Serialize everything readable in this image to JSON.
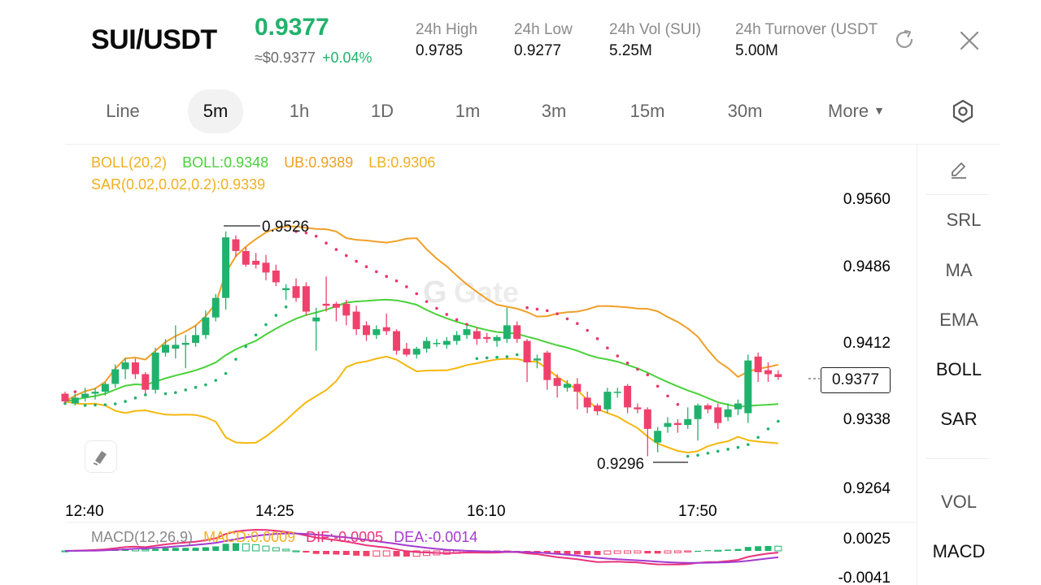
{
  "header": {
    "pair": "SUI/USDT",
    "last_price": "0.9377",
    "usd_price": "≈$0.9377",
    "change": "+0.04%",
    "stats": [
      {
        "label": "24h  High",
        "value": "0.9785"
      },
      {
        "label": "24h  Low",
        "value": "0.9277"
      },
      {
        "label": "24h  Vol (SUI)",
        "value": "5.25M"
      },
      {
        "label": "24h  Turnover (USDT",
        "value": "5.00M"
      }
    ]
  },
  "timeframes": [
    "Line",
    "5m",
    "1h",
    "1D",
    "1m",
    "3m",
    "15m",
    "30m"
  ],
  "active_timeframe": "5m",
  "more_label": "More",
  "indicators": {
    "boll_name": "BOLL(20,2)",
    "boll": "BOLL:0.9348",
    "ub": "UB:0.9389",
    "lb": "LB:0.9306",
    "sar": "SAR(0.02,0.02,0.2):0.9339"
  },
  "price_axis": [
    "0.9560",
    "0.9486",
    "0.9412",
    "0.9338",
    "0.9264"
  ],
  "time_axis": [
    "12:40",
    "14:25",
    "16:10",
    "17:50"
  ],
  "annotations": {
    "high": "0.9526",
    "low": "0.9296"
  },
  "current_price_tag": "0.9377",
  "macd": {
    "name": "MACD(12,26,9)",
    "macd": "MACD:0.0009",
    "dif": "DIF:-0.0005",
    "dea": "DEA:-0.0014",
    "axis": [
      "0.0025",
      "-0.0041"
    ]
  },
  "sidebar": {
    "items": [
      "SRL",
      "MA",
      "EMA",
      "BOLL",
      "SAR",
      "VOL",
      "MACD"
    ],
    "active": [
      "BOLL",
      "SAR",
      "MACD"
    ]
  },
  "colors": {
    "up": "#20b26c",
    "down": "#f0416c",
    "boll": "#49d13a",
    "bands": "#f0a028",
    "sar": "#e8366a"
  },
  "chart_data": {
    "type": "candlestick",
    "ylim": [
      0.9264,
      0.956
    ],
    "candles": [
      {
        "o": 0.936,
        "h": 0.9362,
        "l": 0.935,
        "c": 0.9352
      },
      {
        "o": 0.935,
        "h": 0.936,
        "l": 0.9348,
        "c": 0.9356
      },
      {
        "o": 0.9356,
        "h": 0.9366,
        "l": 0.9352,
        "c": 0.936
      },
      {
        "o": 0.936,
        "h": 0.9366,
        "l": 0.9354,
        "c": 0.9362
      },
      {
        "o": 0.9362,
        "h": 0.9372,
        "l": 0.9358,
        "c": 0.937
      },
      {
        "o": 0.937,
        "h": 0.939,
        "l": 0.9366,
        "c": 0.9385
      },
      {
        "o": 0.9385,
        "h": 0.9396,
        "l": 0.9375,
        "c": 0.9392
      },
      {
        "o": 0.9392,
        "h": 0.9396,
        "l": 0.9375,
        "c": 0.938
      },
      {
        "o": 0.938,
        "h": 0.9382,
        "l": 0.936,
        "c": 0.9364
      },
      {
        "o": 0.9364,
        "h": 0.9407,
        "l": 0.936,
        "c": 0.9402
      },
      {
        "o": 0.9402,
        "h": 0.9416,
        "l": 0.9398,
        "c": 0.941
      },
      {
        "o": 0.9406,
        "h": 0.943,
        "l": 0.9396,
        "c": 0.941
      },
      {
        "o": 0.941,
        "h": 0.942,
        "l": 0.9386,
        "c": 0.9412
      },
      {
        "o": 0.9412,
        "h": 0.943,
        "l": 0.9408,
        "c": 0.942
      },
      {
        "o": 0.942,
        "h": 0.9445,
        "l": 0.9416,
        "c": 0.9438
      },
      {
        "o": 0.9438,
        "h": 0.9462,
        "l": 0.9434,
        "c": 0.9458
      },
      {
        "o": 0.9458,
        "h": 0.9526,
        "l": 0.9446,
        "c": 0.952
      },
      {
        "o": 0.9518,
        "h": 0.9522,
        "l": 0.95,
        "c": 0.9506
      },
      {
        "o": 0.9506,
        "h": 0.951,
        "l": 0.949,
        "c": 0.9492
      },
      {
        "o": 0.9496,
        "h": 0.9504,
        "l": 0.9488,
        "c": 0.9492
      },
      {
        "o": 0.9494,
        "h": 0.9502,
        "l": 0.9476,
        "c": 0.9484
      },
      {
        "o": 0.9486,
        "h": 0.9492,
        "l": 0.947,
        "c": 0.9474
      },
      {
        "o": 0.9466,
        "h": 0.9472,
        "l": 0.9456,
        "c": 0.9468
      },
      {
        "o": 0.947,
        "h": 0.9478,
        "l": 0.9454,
        "c": 0.9458
      },
      {
        "o": 0.947,
        "h": 0.9474,
        "l": 0.944,
        "c": 0.9444
      },
      {
        "o": 0.9434,
        "h": 0.9448,
        "l": 0.9404,
        "c": 0.9438
      },
      {
        "o": 0.9452,
        "h": 0.948,
        "l": 0.9444,
        "c": 0.945
      },
      {
        "o": 0.9452,
        "h": 0.9454,
        "l": 0.9434,
        "c": 0.9448
      },
      {
        "o": 0.9452,
        "h": 0.9456,
        "l": 0.943,
        "c": 0.944
      },
      {
        "o": 0.9444,
        "h": 0.945,
        "l": 0.942,
        "c": 0.9426
      },
      {
        "o": 0.943,
        "h": 0.9434,
        "l": 0.9414,
        "c": 0.942
      },
      {
        "o": 0.942,
        "h": 0.943,
        "l": 0.9416,
        "c": 0.9426
      },
      {
        "o": 0.9428,
        "h": 0.9442,
        "l": 0.942,
        "c": 0.9424
      },
      {
        "o": 0.9424,
        "h": 0.9426,
        "l": 0.94,
        "c": 0.9404
      },
      {
        "o": 0.9406,
        "h": 0.9412,
        "l": 0.9398,
        "c": 0.94
      },
      {
        "o": 0.94,
        "h": 0.9408,
        "l": 0.9396,
        "c": 0.9406
      },
      {
        "o": 0.9406,
        "h": 0.9418,
        "l": 0.9402,
        "c": 0.9414
      },
      {
        "o": 0.9412,
        "h": 0.9416,
        "l": 0.9408,
        "c": 0.9412
      },
      {
        "o": 0.941,
        "h": 0.9418,
        "l": 0.9406,
        "c": 0.9414
      },
      {
        "o": 0.9414,
        "h": 0.9424,
        "l": 0.941,
        "c": 0.942
      },
      {
        "o": 0.942,
        "h": 0.943,
        "l": 0.9416,
        "c": 0.9426
      },
      {
        "o": 0.9424,
        "h": 0.9428,
        "l": 0.941,
        "c": 0.9416
      },
      {
        "o": 0.9418,
        "h": 0.9422,
        "l": 0.9412,
        "c": 0.9416
      },
      {
        "o": 0.9414,
        "h": 0.942,
        "l": 0.9408,
        "c": 0.9418
      },
      {
        "o": 0.9416,
        "h": 0.9448,
        "l": 0.9412,
        "c": 0.943
      },
      {
        "o": 0.943,
        "h": 0.9434,
        "l": 0.9412,
        "c": 0.9416
      },
      {
        "o": 0.9414,
        "h": 0.9416,
        "l": 0.9372,
        "c": 0.9392
      },
      {
        "o": 0.9394,
        "h": 0.94,
        "l": 0.9386,
        "c": 0.9396
      },
      {
        "o": 0.9402,
        "h": 0.9404,
        "l": 0.9364,
        "c": 0.9374
      },
      {
        "o": 0.9376,
        "h": 0.938,
        "l": 0.9356,
        "c": 0.9368
      },
      {
        "o": 0.9366,
        "h": 0.9374,
        "l": 0.9362,
        "c": 0.937
      },
      {
        "o": 0.937,
        "h": 0.9376,
        "l": 0.9344,
        "c": 0.9362
      },
      {
        "o": 0.9356,
        "h": 0.9362,
        "l": 0.934,
        "c": 0.9346
      },
      {
        "o": 0.9348,
        "h": 0.935,
        "l": 0.9338,
        "c": 0.9342
      },
      {
        "o": 0.9344,
        "h": 0.9366,
        "l": 0.934,
        "c": 0.9362
      },
      {
        "o": 0.9362,
        "h": 0.9366,
        "l": 0.9356,
        "c": 0.9362
      },
      {
        "o": 0.9368,
        "h": 0.937,
        "l": 0.934,
        "c": 0.9346
      },
      {
        "o": 0.9346,
        "h": 0.935,
        "l": 0.934,
        "c": 0.9344
      },
      {
        "o": 0.9344,
        "h": 0.9346,
        "l": 0.9296,
        "c": 0.9324
      },
      {
        "o": 0.931,
        "h": 0.9326,
        "l": 0.93,
        "c": 0.9322
      },
      {
        "o": 0.9326,
        "h": 0.9336,
        "l": 0.932,
        "c": 0.933
      },
      {
        "o": 0.933,
        "h": 0.9334,
        "l": 0.932,
        "c": 0.9328
      },
      {
        "o": 0.9328,
        "h": 0.9346,
        "l": 0.9324,
        "c": 0.9334
      },
      {
        "o": 0.9334,
        "h": 0.935,
        "l": 0.9312,
        "c": 0.9348
      },
      {
        "o": 0.9348,
        "h": 0.935,
        "l": 0.934,
        "c": 0.9344
      },
      {
        "o": 0.9346,
        "h": 0.935,
        "l": 0.9324,
        "c": 0.933
      },
      {
        "o": 0.9336,
        "h": 0.935,
        "l": 0.9332,
        "c": 0.9344
      },
      {
        "o": 0.9344,
        "h": 0.9354,
        "l": 0.9338,
        "c": 0.935
      },
      {
        "o": 0.934,
        "h": 0.94,
        "l": 0.933,
        "c": 0.9394
      },
      {
        "o": 0.9398,
        "h": 0.9402,
        "l": 0.9372,
        "c": 0.9382
      },
      {
        "o": 0.9384,
        "h": 0.9392,
        "l": 0.9372,
        "c": 0.938
      },
      {
        "o": 0.938,
        "h": 0.9384,
        "l": 0.9374,
        "c": 0.9377
      }
    ]
  }
}
